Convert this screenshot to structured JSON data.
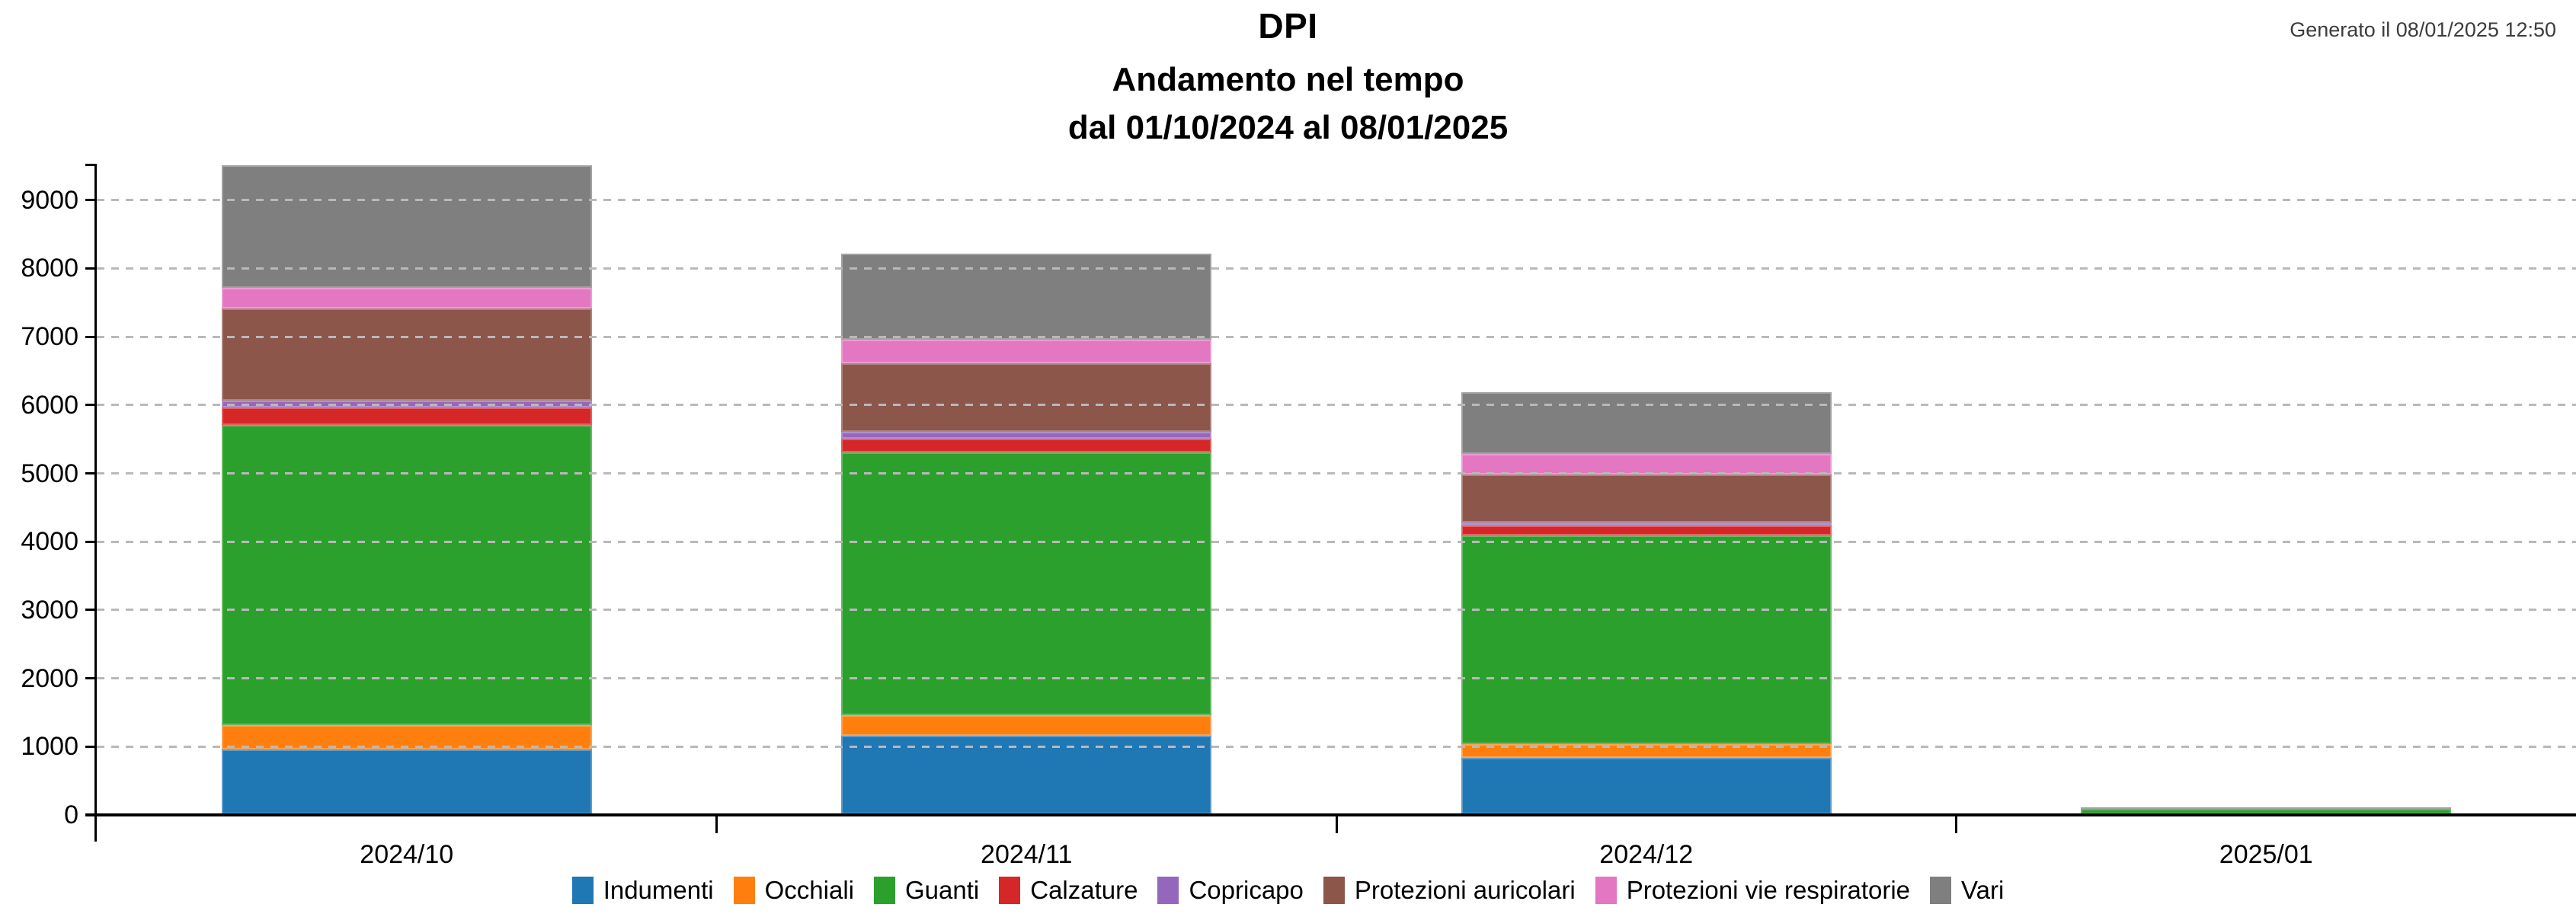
{
  "header": {
    "title": "DPI",
    "subtitle": "Andamento nel tempo",
    "date_range": "dal 01/10/2024 al 08/01/2025",
    "generated_label": "Generato il 08/01/2025 12:50"
  },
  "chart_data": {
    "type": "bar",
    "stacked": true,
    "title": "DPI",
    "subtitle": "Andamento nel tempo",
    "period": "dal 01/10/2024 al 08/01/2025",
    "categories": [
      "2024/10",
      "2024/11",
      "2024/12",
      "2025/01"
    ],
    "series": [
      {
        "name": "Indumenti",
        "color": "#1f77b4",
        "values": [
          950,
          1150,
          825,
          0
        ]
      },
      {
        "name": "Occhiali",
        "color": "#ff7f0e",
        "values": [
          350,
          300,
          200,
          0
        ]
      },
      {
        "name": "Guanti",
        "color": "#2ca02c",
        "values": [
          4400,
          3850,
          3050,
          80
        ]
      },
      {
        "name": "Calzature",
        "color": "#d62728",
        "values": [
          250,
          200,
          150,
          0
        ]
      },
      {
        "name": "Copricapo",
        "color": "#9467bd",
        "values": [
          100,
          100,
          50,
          0
        ]
      },
      {
        "name": "Protezioni auricolari",
        "color": "#8c564b",
        "values": [
          1350,
          1000,
          700,
          0
        ]
      },
      {
        "name": "Protezioni vie respiratorie",
        "color": "#e377c2",
        "values": [
          300,
          350,
          300,
          0
        ]
      },
      {
        "name": "Vari",
        "color": "#7f7f7f",
        "values": [
          1800,
          1250,
          900,
          20
        ]
      }
    ],
    "totals": [
      9500,
      8200,
      6175,
      100
    ],
    "y_ticks": [
      0,
      1000,
      2000,
      3000,
      4000,
      5000,
      6000,
      7000,
      8000,
      9000
    ],
    "ylim": [
      0,
      9530
    ],
    "grid": "horizontal-dashed",
    "legend_position": "bottom"
  }
}
